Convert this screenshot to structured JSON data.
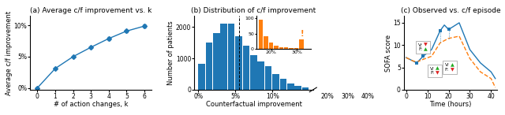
{
  "chart_data": [
    {
      "type": "line",
      "title": "(a) Average c/f improvement vs. k",
      "xlabel": "# of action changes, k",
      "ylabel": "Average c/f improvement",
      "x": [
        0,
        1,
        2,
        3,
        4,
        5,
        6
      ],
      "values": [
        0.0,
        3.1,
        5.0,
        6.5,
        7.9,
        9.1,
        9.9
      ],
      "yerr": [
        0.05,
        0.15,
        0.12,
        0.18,
        0.2,
        0.22,
        0.22
      ],
      "marker": "diamond",
      "xlim": [
        -0.4,
        6.4
      ],
      "ylim": [
        -0.3,
        11.5
      ],
      "xticks": [
        0,
        1,
        2,
        3,
        4,
        5,
        6
      ],
      "yticks": [
        {
          "value": 0,
          "label": "0%"
        },
        {
          "value": 5,
          "label": "5%"
        },
        {
          "value": 10,
          "label": "10%"
        }
      ]
    },
    {
      "type": "histogram",
      "title": "(b) Distribution of c/f improvement",
      "xlabel": "Counterfactual improvement",
      "ylabel": "Number of patients",
      "bins": [
        0.0,
        0.01,
        0.02,
        0.03,
        0.04,
        0.05,
        0.06,
        0.07,
        0.08,
        0.09,
        0.1,
        0.11,
        0.12,
        0.13,
        0.14,
        0.15
      ],
      "counts": [
        830,
        1500,
        1800,
        2100,
        2100,
        1700,
        1400,
        1100,
        900,
        750,
        500,
        350,
        200,
        120,
        60
      ],
      "xlim": [
        -0.005,
        0.155
      ],
      "ylim": [
        0,
        2350
      ],
      "xticks": [
        {
          "value": 0.0,
          "label": "0%"
        },
        {
          "value": 0.05,
          "label": "5%"
        },
        {
          "value": 0.1,
          "label": "10%"
        }
      ],
      "yticks": [
        0,
        1000,
        2000
      ],
      "vline": {
        "x": 0.055,
        "line_style": "dashed"
      },
      "annotations": [
        {
          "text": "20%"
        },
        {
          "text": "30%"
        },
        {
          "text": "40%"
        }
      ],
      "inset": {
        "type": "histogram",
        "bins": [
          0.15,
          0.17,
          0.19,
          0.21,
          0.23,
          0.25,
          0.27,
          0.29,
          0.31,
          0.33
        ],
        "counts": [
          95,
          40,
          20,
          10,
          5,
          3,
          2,
          1,
          30
        ],
        "xlim": [
          0.14,
          0.355
        ],
        "ylim": [
          0,
          108
        ],
        "xticks": [
          {
            "value": 0.2,
            "label": "20%"
          },
          {
            "value": 0.3,
            "label": "30%"
          }
        ],
        "yticks": [
          0,
          50,
          100
        ],
        "annotations": [
          {
            "text": "!",
            "x": 0.32,
            "y": 36
          }
        ]
      }
    },
    {
      "type": "line",
      "title": "(c) Observed vs. c/f episode",
      "xlabel": "Time (hours)",
      "ylabel": "SOFA score",
      "series": [
        {
          "x": [
            0,
            3,
            5,
            8,
            12,
            16,
            18,
            20,
            25,
            30,
            35,
            40,
            42
          ],
          "values": [
            7.2,
            6.5,
            6.0,
            7.5,
            9.0,
            13.2,
            14.5,
            13.5,
            15.0,
            9.0,
            6.0,
            4.0,
            2.5
          ],
          "line_style": "solid"
        },
        {
          "x": [
            0,
            3,
            5,
            8,
            12,
            16,
            20,
            25,
            30,
            35,
            40,
            42
          ],
          "values": [
            7.2,
            6.5,
            6.2,
            6.8,
            7.5,
            10.5,
            11.5,
            12.0,
            7.0,
            4.0,
            2.5,
            0.5
          ],
          "line_style": "dashed"
        }
      ],
      "connectors": {
        "marker": "square",
        "line_style": "dotted",
        "points": [
          {
            "x": 5,
            "y_obs": 6.0,
            "y_cf": 6.2
          },
          {
            "x": 8,
            "y_obs": 7.5,
            "y_cf": 6.8
          },
          {
            "x": 16,
            "y_obs": 13.2,
            "y_cf": 10.5
          },
          {
            "x": 20,
            "y_obs": 13.5,
            "y_cf": 11.5
          }
        ]
      },
      "boxes": [
        {
          "x": 8.0,
          "y": 9.5,
          "rows": [
            {
              "label": "V:",
              "symbol": "▼",
              "color": "#dd2222"
            },
            {
              "label": "F:",
              "symbol": "▲",
              "color": "#22aa22"
            }
          ]
        },
        {
          "x": 13.5,
          "y": 4.2,
          "rows": [
            {
              "label": "V:",
              "symbol": "▲",
              "color": "#22aa22"
            },
            {
              "label": "F:",
              "symbol": "▼",
              "color": "#dd2222"
            }
          ]
        },
        {
          "x": 20.5,
          "y": 5.0,
          "rows": [
            {
              "label": "V:",
              "symbol": "▲",
              "color": "#22aa22"
            },
            {
              "label": "F:",
              "symbol": "▼",
              "color": "#dd2222"
            }
          ]
        }
      ],
      "xlim": [
        -1,
        43
      ],
      "ylim": [
        0,
        16.5
      ],
      "xticks": [
        0,
        10,
        20,
        30,
        40
      ],
      "yticks": [
        0,
        5,
        10,
        15
      ]
    }
  ]
}
